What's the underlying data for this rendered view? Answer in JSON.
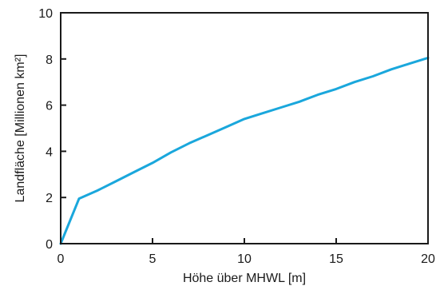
{
  "chart_data": {
    "type": "line",
    "xlabel": "Höhe über MHWL [m]",
    "ylabel": "Landfläche [Millionen km²]",
    "xlim": [
      0,
      20
    ],
    "ylim": [
      0,
      10
    ],
    "x_ticks": [
      "0",
      "5",
      "10",
      "15",
      "20"
    ],
    "y_ticks": [
      "0",
      "2",
      "4",
      "6",
      "8",
      "10"
    ],
    "grid": false,
    "series": [
      {
        "color": "#1aa7dc",
        "x": [
          0,
          1,
          2,
          3,
          4,
          5,
          6,
          7,
          8,
          9,
          10,
          11,
          12,
          13,
          14,
          15,
          16,
          17,
          18,
          19,
          20
        ],
        "y": [
          0,
          1.95,
          2.3,
          2.7,
          3.1,
          3.5,
          3.95,
          4.35,
          4.7,
          5.05,
          5.4,
          5.65,
          5.9,
          6.15,
          6.45,
          6.7,
          7.0,
          7.25,
          7.55,
          7.8,
          8.05
        ]
      }
    ]
  }
}
